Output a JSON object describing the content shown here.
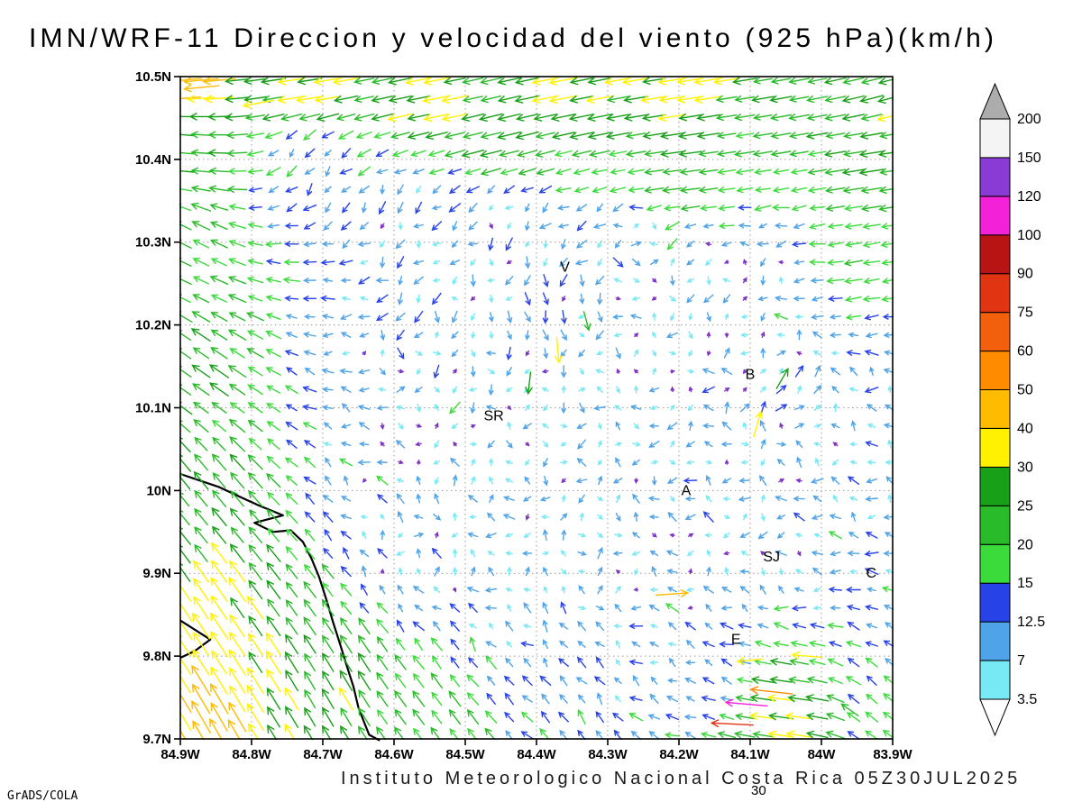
{
  "title": "IMN/WRF-11 Direccion y velocidad del viento (925 hPa)(km/h)",
  "footer": {
    "institute": "Instituto Meteorologico Nacional Costa Rica 05Z30JUL2025",
    "contour_label": "30",
    "credit": "GrADS/COLA"
  },
  "chart_data": {
    "type": "vector-field-map",
    "title": "IMN/WRF-11 Direccion y velocidad del viento (925 hPa)(km/h)",
    "units": "km/h",
    "level": "925 hPa",
    "valid_time": "05Z30JUL2025",
    "x_axis": {
      "min_w": 83.9,
      "max_w": 84.9,
      "tick_values": [
        84.9,
        84.8,
        84.7,
        84.6,
        84.5,
        84.4,
        84.3,
        84.2,
        84.1,
        84.0,
        83.9
      ],
      "tick_labels": [
        "84.9W",
        "84.8W",
        "84.7W",
        "84.6W",
        "84.5W",
        "84.4W",
        "84.3W",
        "84.2W",
        "84.1W",
        "84W",
        "83.9W"
      ]
    },
    "y_axis": {
      "min_n": 9.7,
      "max_n": 10.5,
      "tick_values": [
        10.5,
        10.4,
        10.3,
        10.2,
        10.1,
        10.0,
        9.9,
        9.8,
        9.7
      ],
      "tick_labels": [
        "10.5N",
        "10.4N",
        "10.3N",
        "10.2N",
        "10.1N",
        "10N",
        "9.9N",
        "9.8N",
        "9.7N"
      ]
    },
    "colorbar": {
      "levels": [
        3.5,
        7,
        12.5,
        15,
        20,
        25,
        30,
        40,
        50,
        60,
        75,
        90,
        100,
        120,
        150,
        200
      ],
      "colors": [
        "#76E9F5",
        "#4FA3E8",
        "#2743E8",
        "#3BDB3B",
        "#2ABB2A",
        "#18A018",
        "#FFF100",
        "#FFBB00",
        "#FF8C00",
        "#F2600D",
        "#E03413",
        "#B81414",
        "#F321D7",
        "#8B3BD5",
        "#F4F4F4"
      ],
      "under_color": "#FFFFFF",
      "over_color": "#ACACAC",
      "calm_arrow_color": "#7D2FC6",
      "outline": "#000000"
    },
    "stations": [
      {
        "label": "V",
        "lon": 84.36,
        "lat": 10.27
      },
      {
        "label": "B",
        "lon": 84.1,
        "lat": 10.14
      },
      {
        "label": "SR",
        "lon": 84.46,
        "lat": 10.09
      },
      {
        "label": "A",
        "lon": 84.19,
        "lat": 10.0
      },
      {
        "label": "SJ",
        "lon": 84.07,
        "lat": 9.92
      },
      {
        "label": "C",
        "lon": 83.93,
        "lat": 9.9
      },
      {
        "label": "E",
        "lon": 84.12,
        "lat": 9.82
      }
    ],
    "coastline": [
      [
        [
          84.9,
          10.02
        ],
        [
          84.845,
          10.004
        ],
        [
          84.818,
          9.993
        ],
        [
          84.79,
          9.982
        ],
        [
          84.756,
          9.97
        ],
        [
          84.796,
          9.961
        ],
        [
          84.77,
          9.95
        ],
        [
          84.745,
          9.952
        ],
        [
          84.728,
          9.938
        ],
        [
          84.716,
          9.918
        ],
        [
          84.705,
          9.895
        ],
        [
          84.695,
          9.868
        ],
        [
          84.686,
          9.842
        ],
        [
          84.676,
          9.815
        ],
        [
          84.667,
          9.79
        ],
        [
          84.657,
          9.763
        ],
        [
          84.65,
          9.738
        ],
        [
          84.641,
          9.718
        ],
        [
          84.635,
          9.705
        ],
        [
          84.62,
          9.698
        ]
      ],
      [
        [
          84.9,
          9.843
        ],
        [
          84.858,
          9.82
        ],
        [
          84.88,
          9.806
        ],
        [
          84.9,
          9.798
        ]
      ]
    ],
    "wind_field": {
      "grid_nx": 40,
      "grid_ny": 37,
      "noise": {
        "amp": 10,
        "weak_threshold": 20
      },
      "control_points": [
        {
          "lon": 84.9,
          "lat": 10.5,
          "u": -42,
          "v": -4
        },
        {
          "lon": 84.72,
          "lat": 10.49,
          "u": -33,
          "v": -5
        },
        {
          "lon": 84.55,
          "lat": 10.48,
          "u": -30,
          "v": -6
        },
        {
          "lon": 84.35,
          "lat": 10.49,
          "u": -31,
          "v": -6
        },
        {
          "lon": 84.2,
          "lat": 10.48,
          "u": -32,
          "v": -5
        },
        {
          "lon": 83.9,
          "lat": 10.48,
          "u": -27,
          "v": -7
        },
        {
          "lon": 84.9,
          "lat": 10.42,
          "u": -24,
          "v": 2
        },
        {
          "lon": 84.45,
          "lat": 10.42,
          "u": -25,
          "v": -6
        },
        {
          "lon": 83.92,
          "lat": 10.4,
          "u": -26,
          "v": -4
        },
        {
          "lon": 84.2,
          "lat": 10.38,
          "u": -24,
          "v": -3
        },
        {
          "lon": 84.72,
          "lat": 10.4,
          "u": -6,
          "v": -9
        },
        {
          "lon": 84.6,
          "lat": 10.33,
          "u": -3,
          "v": -8
        },
        {
          "lon": 84.88,
          "lat": 10.3,
          "u": -20,
          "v": 10
        },
        {
          "lon": 84.88,
          "lat": 10.15,
          "u": -20,
          "v": 14
        },
        {
          "lon": 84.88,
          "lat": 10.0,
          "u": -16,
          "v": 20
        },
        {
          "lon": 84.88,
          "lat": 9.85,
          "u": -20,
          "v": 30
        },
        {
          "lon": 84.86,
          "lat": 9.72,
          "u": -22,
          "v": 38
        },
        {
          "lon": 84.7,
          "lat": 9.75,
          "u": -14,
          "v": 24
        },
        {
          "lon": 84.55,
          "lat": 9.73,
          "u": -12,
          "v": 16
        },
        {
          "lon": 84.35,
          "lat": 9.72,
          "u": -8,
          "v": 10
        },
        {
          "lon": 84.55,
          "lat": 10.15,
          "u": 1,
          "v": -4
        },
        {
          "lon": 84.4,
          "lat": 10.2,
          "u": 2,
          "v": -9
        },
        {
          "lon": 84.42,
          "lat": 10.05,
          "u": -2,
          "v": -3
        },
        {
          "lon": 84.25,
          "lat": 10.1,
          "u": -2,
          "v": -2
        },
        {
          "lon": 84.55,
          "lat": 9.95,
          "u": -1,
          "v": 3
        },
        {
          "lon": 84.35,
          "lat": 9.9,
          "u": 2,
          "v": 4
        },
        {
          "lon": 84.2,
          "lat": 9.95,
          "u": -3,
          "v": 2
        },
        {
          "lon": 84.45,
          "lat": 10.32,
          "u": -2,
          "v": -7
        },
        {
          "lon": 84.25,
          "lat": 10.28,
          "u": 4,
          "v": -3
        },
        {
          "lon": 84.1,
          "lat": 10.25,
          "u": -5,
          "v": -2
        },
        {
          "lon": 84.08,
          "lat": 9.92,
          "u": -4,
          "v": 1
        },
        {
          "lon": 83.95,
          "lat": 10.25,
          "u": -18,
          "v": -3
        },
        {
          "lon": 83.92,
          "lat": 10.05,
          "u": -6,
          "v": 2
        },
        {
          "lon": 83.95,
          "lat": 9.9,
          "u": -10,
          "v": 2
        },
        {
          "lon": 84.05,
          "lat": 10.12,
          "u": 6,
          "v": 8
        },
        {
          "lon": 83.92,
          "lat": 9.75,
          "u": -12,
          "v": 10
        },
        {
          "lon": 84.05,
          "lat": 9.74,
          "u": -30,
          "v": 4
        },
        {
          "lon": 84.18,
          "lat": 9.78,
          "u": -10,
          "v": 4
        }
      ],
      "feature_arrows": [
        {
          "lon": 84.87,
          "lat": 10.487,
          "u": -44,
          "v": -4
        },
        {
          "lon": 84.79,
          "lat": 10.468,
          "u": -38,
          "v": -7
        },
        {
          "lon": 84.37,
          "lat": 10.17,
          "u": 3,
          "v": -31
        },
        {
          "lon": 84.41,
          "lat": 10.13,
          "u": -3,
          "v": -26
        },
        {
          "lon": 84.33,
          "lat": 10.205,
          "u": 6,
          "v": -22
        },
        {
          "lon": 84.09,
          "lat": 10.08,
          "u": 9,
          "v": 31
        },
        {
          "lon": 84.055,
          "lat": 10.135,
          "u": 14,
          "v": 24
        },
        {
          "lon": 84.21,
          "lat": 9.875,
          "u": 40,
          "v": 3
        },
        {
          "lon": 84.02,
          "lat": 9.8,
          "u": -37,
          "v": 3
        },
        {
          "lon": 84.1,
          "lat": 9.795,
          "u": -31,
          "v": -3
        },
        {
          "lon": 84.07,
          "lat": 9.757,
          "u": -55,
          "v": 6
        },
        {
          "lon": 84.105,
          "lat": 9.742,
          "u": -102,
          "v": 9
        },
        {
          "lon": 84.125,
          "lat": 9.718,
          "u": -80,
          "v": 4
        },
        {
          "lon": 83.96,
          "lat": 9.735,
          "u": -20,
          "v": 14
        }
      ]
    }
  }
}
